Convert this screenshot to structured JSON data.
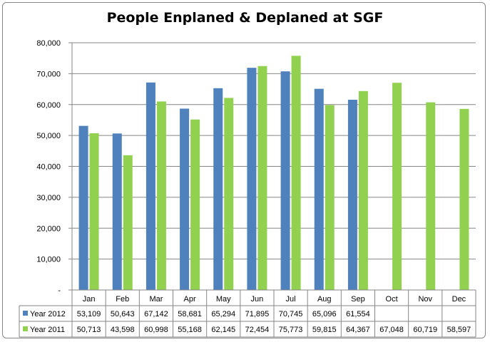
{
  "chart_data": {
    "type": "bar",
    "title": "People Enplaned & Deplaned at SGF",
    "xlabel": "",
    "ylabel": "",
    "ylim": [
      0,
      80000
    ],
    "yticks": [
      "-",
      "10,000",
      "20,000",
      "30,000",
      "40,000",
      "50,000",
      "60,000",
      "70,000",
      "80,000"
    ],
    "categories": [
      "Jan",
      "Feb",
      "Mar",
      "Apr",
      "May",
      "Jun",
      "Jul",
      "Aug",
      "Sep",
      "Oct",
      "Nov",
      "Dec"
    ],
    "series": [
      {
        "name": "Year 2012",
        "color": "#4f81bd",
        "values": [
          53109,
          50643,
          67142,
          58681,
          65294,
          71895,
          70745,
          65096,
          61554,
          null,
          null,
          null
        ],
        "labels": [
          "53,109",
          "50,643",
          "67,142",
          "58,681",
          "65,294",
          "71,895",
          "70,745",
          "65,096",
          "61,554",
          "",
          "",
          ""
        ]
      },
      {
        "name": "Year 2011",
        "color": "#92d050",
        "values": [
          50713,
          43598,
          60998,
          55168,
          62145,
          72454,
          75773,
          59815,
          64367,
          67048,
          60719,
          58597
        ],
        "labels": [
          "50,713",
          "43,598",
          "60,998",
          "55,168",
          "62,145",
          "72,454",
          "75,773",
          "59,815",
          "64,367",
          "67,048",
          "60,719",
          "58,597"
        ]
      }
    ],
    "grid": true,
    "legend": "data-table-left"
  }
}
